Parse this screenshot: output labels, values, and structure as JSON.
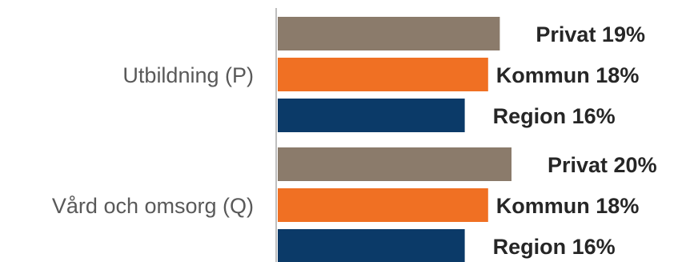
{
  "chart_data": {
    "type": "bar",
    "orientation": "horizontal",
    "categories": [
      "Utbildning (P)",
      "Vård och omsorg (Q)"
    ],
    "series": [
      {
        "name": "Privat",
        "color": "#8b7b6b",
        "values": [
          19,
          20
        ],
        "labels": [
          "Privat 19%",
          "Privat 20%"
        ]
      },
      {
        "name": "Kommun",
        "color": "#f07023",
        "values": [
          18,
          18
        ],
        "labels": [
          "Kommun  18%",
          "Kommun  18%"
        ]
      },
      {
        "name": "Region",
        "color": "#0b3a68",
        "values": [
          16,
          16
        ],
        "labels": [
          "Region 16%",
          "Region 16%"
        ]
      }
    ],
    "axis_color": "#bfbfbf",
    "grid": false,
    "legend": "none"
  }
}
